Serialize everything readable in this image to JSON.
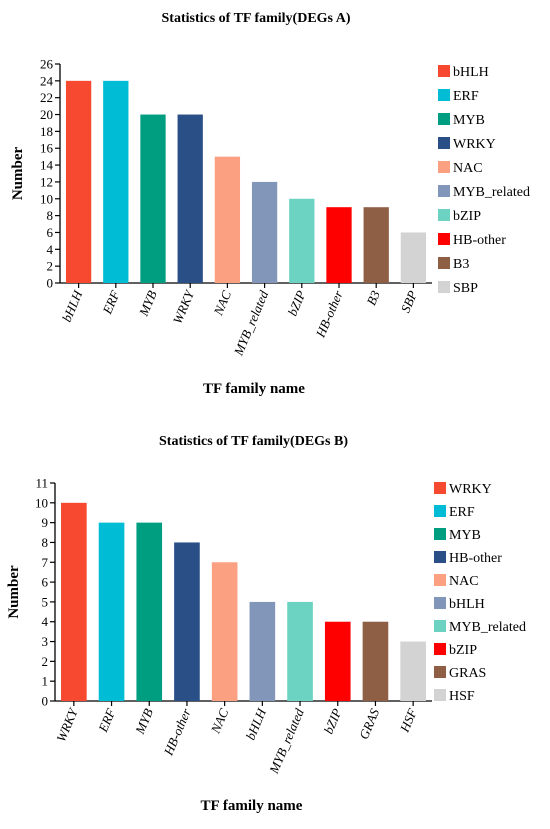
{
  "chart_data": [
    {
      "type": "bar",
      "title": "Statistics of TF family(DEGs A)",
      "xlabel": "TF family name",
      "ylabel": "Number",
      "ylim": [
        0,
        26
      ],
      "yticks": [
        0,
        2,
        4,
        6,
        8,
        10,
        12,
        14,
        16,
        18,
        20,
        22,
        24,
        26
      ],
      "categories": [
        "bHLH",
        "ERF",
        "MYB",
        "WRKY",
        "NAC",
        "MYB_related",
        "bZIP",
        "HB-other",
        "B3",
        "SBP"
      ],
      "values": [
        24,
        24,
        20,
        20,
        15,
        12,
        10,
        9,
        9,
        6
      ],
      "colors": [
        "#f6492f",
        "#00bcd4",
        "#009e80",
        "#2a4f86",
        "#fba080",
        "#8196b9",
        "#6cd3c2",
        "#ff0000",
        "#8e5f45",
        "#d3d3d3"
      ],
      "legend": [
        "bHLH",
        "ERF",
        "MYB",
        "WRKY",
        "NAC",
        "MYB_related",
        "bZIP",
        "HB-other",
        "B3",
        "SBP"
      ],
      "legend_position": "right",
      "grid": false
    },
    {
      "type": "bar",
      "title": "Statistics of TF family(DEGs B)",
      "xlabel": "TF family name",
      "ylabel": "Number",
      "ylim": [
        0,
        11
      ],
      "yticks": [
        0,
        1,
        2,
        3,
        4,
        5,
        6,
        7,
        8,
        9,
        10,
        11
      ],
      "categories": [
        "WRKY",
        "ERF",
        "MYB",
        "HB-other",
        "NAC",
        "bHLH",
        "MYB_related",
        "bZIP",
        "GRAS",
        "HSF"
      ],
      "values": [
        10,
        9,
        9,
        8,
        7,
        5,
        5,
        4,
        4,
        3
      ],
      "colors": [
        "#f6492f",
        "#00bcd4",
        "#009e80",
        "#2a4f86",
        "#fba080",
        "#8196b9",
        "#6cd3c2",
        "#ff0000",
        "#8e5f45",
        "#d3d3d3"
      ],
      "legend": [
        "WRKY",
        "ERF",
        "MYB",
        "HB-other",
        "NAC",
        "bHLH",
        "MYB_related",
        "bZIP",
        "GRAS",
        "HSF"
      ],
      "legend_position": "right",
      "grid": false
    }
  ]
}
